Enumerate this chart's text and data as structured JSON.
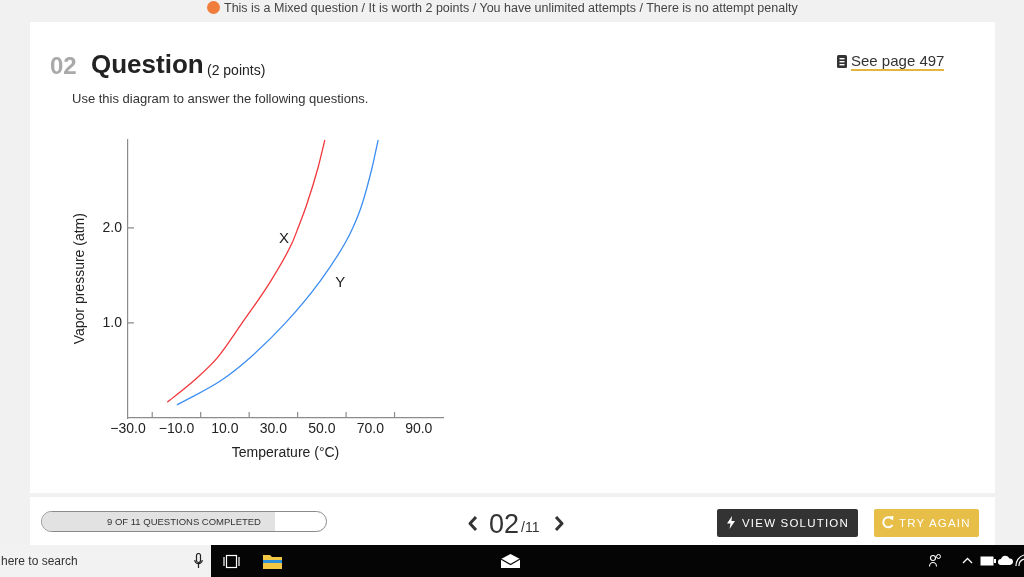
{
  "chart_data": {
    "type": "line",
    "title": "Question",
    "subtitle": "Use this diagram to answer the following questions.",
    "xlabel": "Temperature (°C)",
    "ylabel": "Vapor pressure (atm)",
    "series": [
      {
        "name": "X",
        "color": "#f2383c",
        "x": [
          -13.6,
          -2.5,
          7.1,
          17.1,
          28.9,
          37.7,
          40.2,
          43.7,
          48.5,
          51.2
        ],
        "values": [
          0.17,
          0.4,
          0.64,
          1.0,
          1.44,
          1.84,
          2.0,
          2.24,
          2.64,
          2.92
        ]
      },
      {
        "name": "Y",
        "color": "#3d8ef2",
        "x": [
          -9.6,
          8.7,
          20.6,
          35.0,
          49.3,
          59.6,
          62.8,
          66.5,
          70.8,
          73.2
        ],
        "values": [
          0.14,
          0.4,
          0.64,
          1.0,
          1.44,
          1.84,
          2.0,
          2.24,
          2.64,
          2.92
        ]
      }
    ],
    "xlim": [
      -30,
      100
    ],
    "xticks": [
      {
        "value": -30,
        "label": "−30.0"
      },
      {
        "value": -20,
        "label": null
      },
      {
        "value": -10,
        "label": "−10.0"
      },
      {
        "value": 0,
        "label": null
      },
      {
        "value": 10,
        "label": "10.0"
      },
      {
        "value": 20,
        "label": null
      },
      {
        "value": 30,
        "label": "30.0"
      },
      {
        "value": 40,
        "label": null
      },
      {
        "value": 50,
        "label": "50.0"
      },
      {
        "value": 60,
        "label": null
      },
      {
        "value": 70,
        "label": "70.0"
      },
      {
        "value": 80,
        "label": null
      },
      {
        "value": 90,
        "label": "90.0"
      }
    ],
    "ylim": [
      0,
      2.93
    ],
    "yticks": [
      {
        "value": 1,
        "label": "1.0"
      },
      {
        "value": 2,
        "label": "2.0"
      }
    ],
    "line_style": "solid",
    "annotations": [
      "This is a Mixed question / It is worth 2 points / You have unlimited attempts / There is no attempt penalty",
      "02",
      "(2 points)",
      "See page 497",
      "9 OF 11 QUESTIONS COMPLETED",
      "02",
      "/11",
      "VIEW SOLUTION",
      "TRY AGAIN",
      "here to search"
    ]
  }
}
